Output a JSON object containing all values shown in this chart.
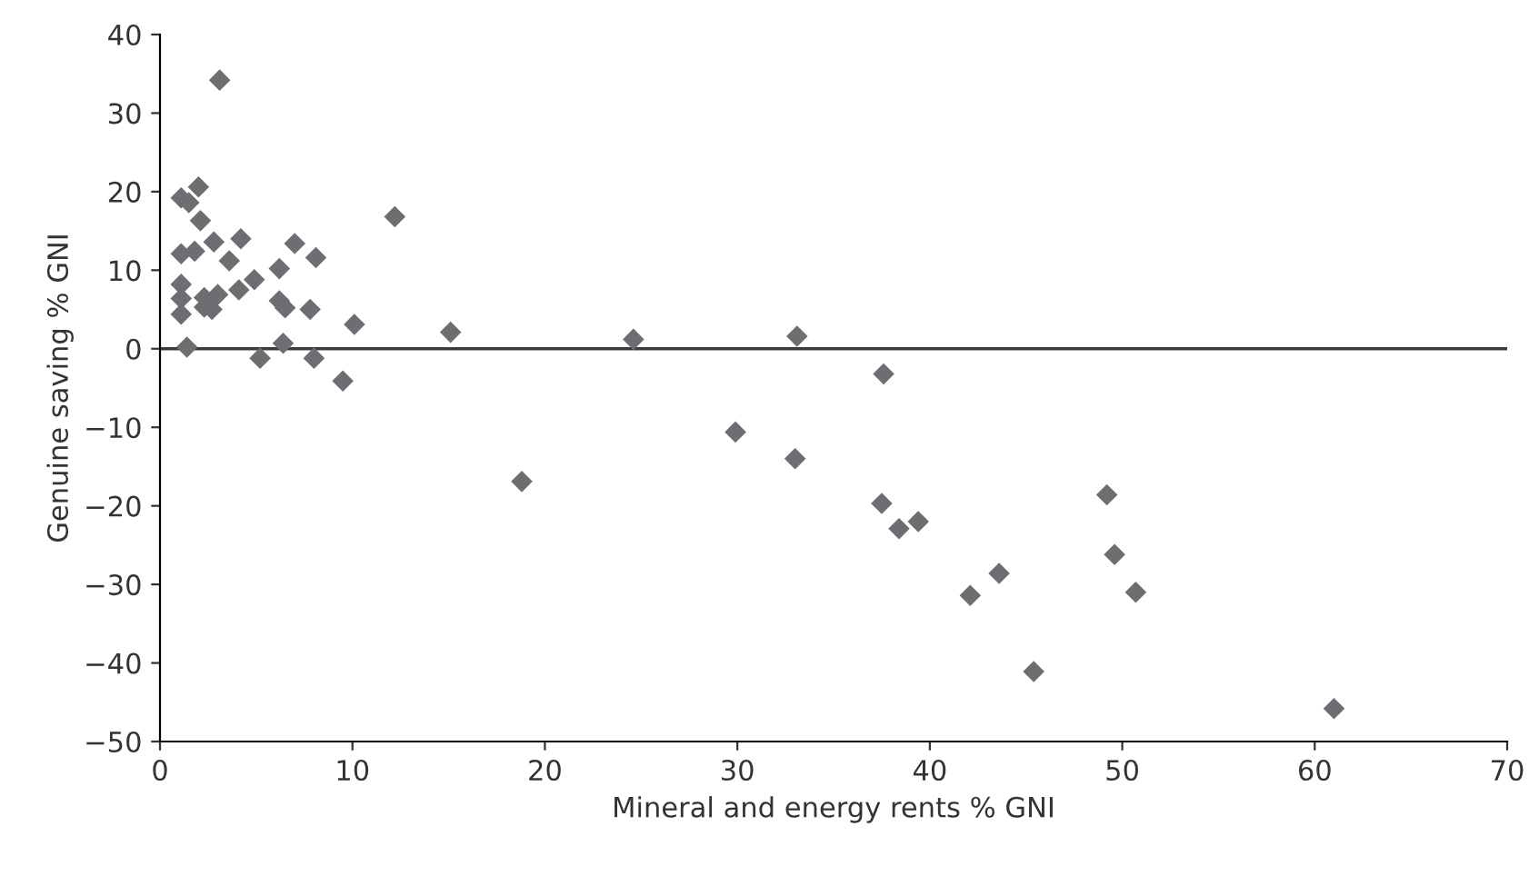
{
  "chart_data": {
    "type": "scatter",
    "xlabel": "Mineral and energy rents % GNI",
    "ylabel": "Genuine saving % GNI",
    "xlim": [
      0,
      70
    ],
    "xticks": [
      0,
      10,
      20,
      30,
      40,
      50,
      60,
      70
    ],
    "ylim": [
      -50,
      40
    ],
    "yticks": [
      {
        "value": -50,
        "label": "−50"
      },
      {
        "value": -40,
        "label": "−40"
      },
      {
        "value": -30,
        "label": "−30"
      },
      {
        "value": -20,
        "label": "−20"
      },
      {
        "value": -10,
        "label": "−10"
      },
      0,
      10,
      20,
      30,
      40
    ],
    "marker": "diamond",
    "grid": false,
    "ref_lines": [
      {
        "axis": "y",
        "value": 0,
        "color": "#3c3c3c"
      }
    ],
    "series": [
      {
        "color": "#6d6e71",
        "x": [
          1.1,
          1.5,
          2.0,
          2.1,
          1.1,
          1.8,
          2.8,
          4.2,
          3.6,
          1.1,
          1.1,
          1.1,
          1.4,
          2.3,
          2.7,
          3.0,
          2.3,
          4.1,
          4.9,
          5.2,
          6.2,
          7.0,
          8.1,
          6.2,
          6.5,
          6.4,
          7.8,
          8.0,
          9.5,
          10.1,
          12.2,
          3.1,
          15.1,
          18.8,
          24.6,
          29.9,
          33.1,
          33.0,
          37.6,
          37.5,
          38.4,
          39.4,
          42.1,
          43.6,
          45.4,
          49.2,
          49.6,
          50.7,
          61.0
        ],
        "values": [
          19.2,
          18.6,
          20.6,
          16.3,
          12.1,
          12.4,
          13.6,
          14.0,
          11.2,
          8.2,
          6.4,
          4.4,
          0.2,
          6.5,
          5.0,
          6.9,
          5.3,
          7.5,
          8.8,
          -1.2,
          10.2,
          13.4,
          11.6,
          6.1,
          5.2,
          0.7,
          5.0,
          -1.2,
          -4.1,
          3.1,
          16.8,
          34.2,
          2.1,
          -16.9,
          1.2,
          -10.6,
          1.6,
          -14.0,
          -3.2,
          -19.7,
          -22.9,
          -22.0,
          -31.4,
          -28.6,
          -41.1,
          -18.6,
          -26.2,
          -31.0,
          -45.8
        ]
      }
    ]
  }
}
